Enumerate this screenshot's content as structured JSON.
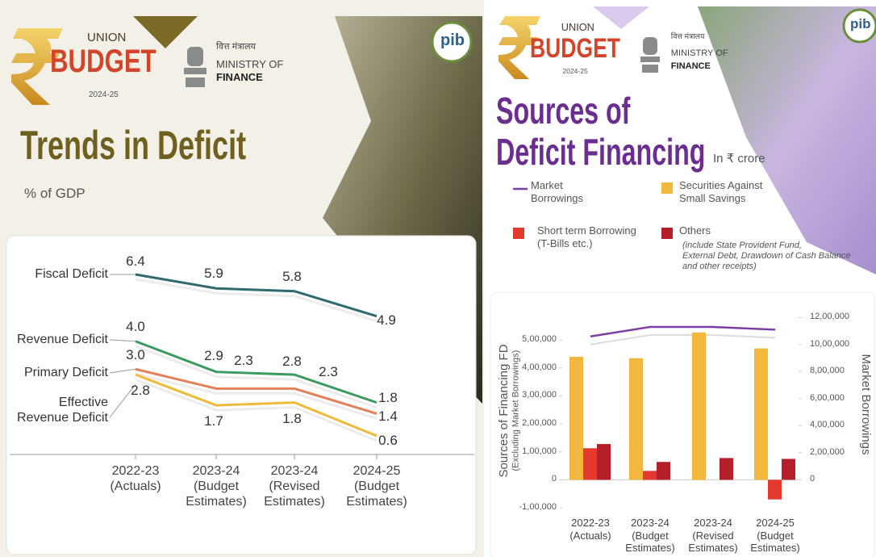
{
  "branding": [
    {
      "union": "UNION",
      "budget": "BUDGET",
      "year": "2024-25",
      "ministry_hindi": "वित्त मंत्रालय",
      "ministry": "MINISTRY OF",
      "finance": "FINANCE",
      "pib": "pib"
    },
    {
      "union": "UNION",
      "budget": "BUDGET",
      "year": "2024-25",
      "ministry_hindi": "वित्त मंत्रालय",
      "ministry": "MINISTRY OF",
      "finance": "FINANCE",
      "pib": "pib"
    }
  ],
  "chart_data": [
    {
      "type": "line",
      "title": "Trends in Deficit",
      "subtitle": "% of GDP",
      "categories": [
        "2022-23\n(Actuals)",
        "2023-24\n(Budget\nEstimates)",
        "2023-24\n(Revised\nEstimates)",
        "2024-25\n(Budget\nEstimates)"
      ],
      "series": [
        {
          "name": "Fiscal Deficit",
          "color": "#2f6a6e",
          "values": [
            6.4,
            5.9,
            5.8,
            4.9
          ],
          "value_labels": [
            "6.4",
            "5.9",
            "5.8",
            "4.9"
          ]
        },
        {
          "name": "Revenue Deficit",
          "color": "#3c9a5f",
          "values": [
            4.0,
            2.9,
            2.8,
            1.8
          ],
          "value_labels": [
            "4.0",
            "2.9",
            "2.8",
            "1.8"
          ]
        },
        {
          "name": "Primary Deficit",
          "color": "#e2815a",
          "values": [
            3.0,
            2.3,
            2.3,
            1.4
          ],
          "value_labels": [
            "3.0",
            "2.3",
            "2.3",
            "1.4"
          ]
        },
        {
          "name": "Effective\nRevenue Deficit",
          "color": "#f0b93a",
          "values": [
            2.8,
            1.7,
            1.8,
            0.6
          ],
          "value_labels": [
            "2.8",
            "1.7",
            "1.8",
            "0.6"
          ]
        }
      ]
    },
    {
      "type": "bar",
      "title": "Sources of\nDeficit Financing",
      "unit_note": "In ₹ crore",
      "note": "(include State Provident Fund,\nExternal Debt, Drawdown of Cash Balance\nand other receipts)",
      "categories": [
        "2022-23\n(Actuals)",
        "2023-24\n(Budget\nEstimates)",
        "2023-24\n(Revised\nEstimates)",
        "2024-25\n(Budget\nEstimates)"
      ],
      "ylabel": "Sources of Financing FD",
      "ylabel_sub": "(Excluding Market Borrowings)",
      "y2label": "Market Borrowings",
      "ylim": [
        -120000,
        590000
      ],
      "yticks": [
        {
          "value": -100000,
          "label": "-1,00,000"
        },
        0,
        {
          "value": 100000,
          "label": "1,00,000"
        },
        {
          "value": 200000,
          "label": "2,00,000"
        },
        {
          "value": 300000,
          "label": "3,00,000"
        },
        {
          "value": 400000,
          "label": "4,00,000"
        },
        {
          "value": 500000,
          "label": "5,00,000"
        }
      ],
      "y2lim": [
        -250000,
        1220000
      ],
      "y2ticks": [
        0,
        {
          "value": 200000,
          "label": "2,00,000"
        },
        {
          "value": 400000,
          "label": "4,00,000"
        },
        {
          "value": 600000,
          "label": "6,00,000"
        },
        {
          "value": 800000,
          "label": "8,00,000"
        },
        {
          "value": 1000000,
          "label": "10,00,000"
        },
        {
          "value": 1200000,
          "label": "12,00,000"
        }
      ],
      "series": [
        {
          "name": "Market\nBorrowings",
          "type": "line",
          "axis": "y2",
          "color": "#7d3fa5",
          "values": [
            1060000,
            1130000,
            1130000,
            1110000
          ]
        },
        {
          "name": "Securities Against\nSmall Savings",
          "color": "#f2b83d",
          "values": [
            440000,
            435000,
            527000,
            470000
          ]
        },
        {
          "name": "Short term Borrowing\n(T-Bills etc.)",
          "color": "#e5392f",
          "values": [
            113000,
            32000,
            0,
            -70000
          ]
        },
        {
          "name": "Others",
          "color": "#b51f2a",
          "values": [
            128000,
            64000,
            78000,
            75000
          ]
        }
      ]
    }
  ]
}
